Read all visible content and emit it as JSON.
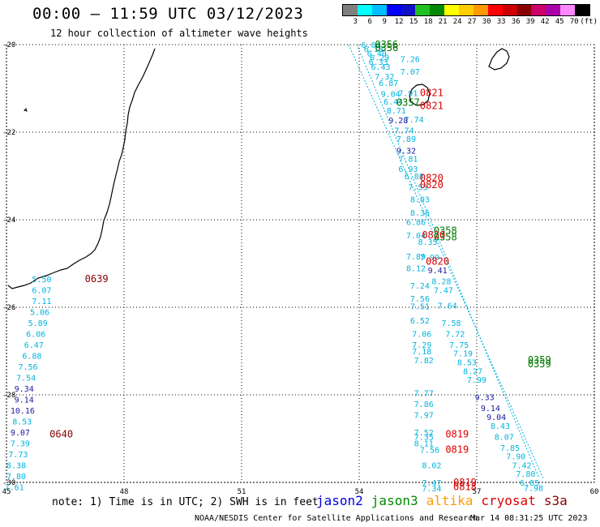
{
  "title": "00:00 — 11:59 UTC 03/12/2023",
  "subtitle": "12 hour collection of altimeter wave heights",
  "legend": {
    "colors": [
      "#7f7f7f",
      "#00ffff",
      "#00bfff",
      "#0000ff",
      "#1010c8",
      "#20c020",
      "#008800",
      "#ffff00",
      "#ffcc00",
      "#ff9900",
      "#ff0000",
      "#cc0000",
      "#880000",
      "#cc0066",
      "#aa00aa",
      "#ff88ff",
      "#000000"
    ],
    "labels": [
      "3",
      "6",
      "9",
      "12",
      "15",
      "18",
      "21",
      "24",
      "27",
      "30",
      "33",
      "36",
      "39",
      "42",
      "45",
      "70",
      "(ft)"
    ]
  },
  "axes": {
    "lon": [
      45,
      48,
      51,
      54,
      57,
      60
    ],
    "lat": [
      -20,
      -22,
      -24,
      -26,
      -28,
      -30
    ],
    "lon_labels": [
      "45",
      "48",
      "51",
      "54",
      "57",
      "60"
    ],
    "lat_labels": [
      "-20",
      "-22",
      "-24",
      "-26",
      "-28",
      "-30"
    ]
  },
  "colors": {
    "cyan": "#00b4e0",
    "dblue": "#1a1aa0",
    "red": "#dd0000",
    "dred": "#880000",
    "green": "#007700"
  },
  "labels": [
    {
      "t": "6.04",
      "lon": 54.05,
      "lat": -20.0,
      "c": "cyan"
    },
    {
      "t": "6.18",
      "lon": 54.12,
      "lat": -20.09,
      "c": "cyan"
    },
    {
      "t": "6.40",
      "lon": 54.2,
      "lat": -20.19,
      "c": "cyan"
    },
    {
      "t": "6.29",
      "lon": 54.27,
      "lat": -20.29,
      "c": "cyan"
    },
    {
      "t": "6.33",
      "lon": 54.24,
      "lat": -20.39,
      "c": "cyan"
    },
    {
      "t": "6.43",
      "lon": 54.3,
      "lat": -20.5,
      "c": "cyan"
    },
    {
      "t": "7.32",
      "lon": 54.4,
      "lat": -20.72,
      "c": "cyan"
    },
    {
      "t": "6.87",
      "lon": 54.5,
      "lat": -20.87,
      "c": "cyan"
    },
    {
      "t": "7.26",
      "lon": 55.05,
      "lat": -20.32,
      "c": "cyan"
    },
    {
      "t": "7.07",
      "lon": 55.05,
      "lat": -20.61,
      "c": "cyan"
    },
    {
      "t": "9.04",
      "lon": 54.55,
      "lat": -21.12,
      "c": "cyan"
    },
    {
      "t": "7.91",
      "lon": 55.0,
      "lat": -21.1,
      "c": "cyan"
    },
    {
      "t": "6.44",
      "lon": 54.62,
      "lat": -21.3,
      "c": "cyan"
    },
    {
      "t": "8.71",
      "lon": 54.7,
      "lat": -21.5,
      "c": "cyan"
    },
    {
      "t": "7.74",
      "lon": 55.15,
      "lat": -21.7,
      "c": "cyan"
    },
    {
      "t": "9.28",
      "lon": 54.75,
      "lat": -21.72,
      "c": "dblue"
    },
    {
      "t": "7.74",
      "lon": 54.9,
      "lat": -21.95,
      "c": "cyan"
    },
    {
      "t": "7.89",
      "lon": 54.95,
      "lat": -22.15,
      "c": "cyan"
    },
    {
      "t": "9.32",
      "lon": 54.95,
      "lat": -22.42,
      "c": "dblue"
    },
    {
      "t": "7.81",
      "lon": 55.0,
      "lat": -22.6,
      "c": "cyan"
    },
    {
      "t": "6.93",
      "lon": 55.0,
      "lat": -22.83,
      "c": "cyan"
    },
    {
      "t": "6.88",
      "lon": 55.15,
      "lat": -23.0,
      "c": "cyan"
    },
    {
      "t": "7.55",
      "lon": 55.25,
      "lat": -23.25,
      "c": "cyan"
    },
    {
      "t": "8.03",
      "lon": 55.3,
      "lat": -23.53,
      "c": "cyan"
    },
    {
      "t": "8.36",
      "lon": 55.3,
      "lat": -23.83,
      "c": "cyan"
    },
    {
      "t": "6.86",
      "lon": 55.2,
      "lat": -24.05,
      "c": "cyan"
    },
    {
      "t": "7.04",
      "lon": 55.2,
      "lat": -24.35,
      "c": "cyan"
    },
    {
      "t": "8.35",
      "lon": 55.5,
      "lat": -24.5,
      "c": "cyan"
    },
    {
      "t": "7.89",
      "lon": 55.2,
      "lat": -24.83,
      "c": "cyan"
    },
    {
      "t": "7.99",
      "lon": 55.55,
      "lat": -24.85,
      "c": "cyan"
    },
    {
      "t": "8.12",
      "lon": 55.2,
      "lat": -25.1,
      "c": "cyan"
    },
    {
      "t": "9.41",
      "lon": 55.75,
      "lat": -25.15,
      "c": "dblue"
    },
    {
      "t": "8.28",
      "lon": 55.85,
      "lat": -25.4,
      "c": "cyan"
    },
    {
      "t": "7.24",
      "lon": 55.3,
      "lat": -25.5,
      "c": "cyan"
    },
    {
      "t": "7.47",
      "lon": 55.9,
      "lat": -25.6,
      "c": "cyan"
    },
    {
      "t": "7.56",
      "lon": 55.3,
      "lat": -25.8,
      "c": "cyan"
    },
    {
      "t": "7.51",
      "lon": 55.3,
      "lat": -25.97,
      "c": "cyan"
    },
    {
      "t": "7.64",
      "lon": 56.0,
      "lat": -25.95,
      "c": "cyan"
    },
    {
      "t": "6.52",
      "lon": 55.3,
      "lat": -26.3,
      "c": "cyan"
    },
    {
      "t": "7.58",
      "lon": 56.1,
      "lat": -26.35,
      "c": "cyan"
    },
    {
      "t": "7.06",
      "lon": 55.35,
      "lat": -26.6,
      "c": "cyan"
    },
    {
      "t": "7.72",
      "lon": 56.2,
      "lat": -26.6,
      "c": "cyan"
    },
    {
      "t": "7.29",
      "lon": 55.35,
      "lat": -26.85,
      "c": "cyan"
    },
    {
      "t": "7.75",
      "lon": 56.3,
      "lat": -26.85,
      "c": "cyan"
    },
    {
      "t": "7.18",
      "lon": 55.35,
      "lat": -27.0,
      "c": "cyan"
    },
    {
      "t": "7.19",
      "lon": 56.4,
      "lat": -27.05,
      "c": "cyan"
    },
    {
      "t": "7.82",
      "lon": 55.4,
      "lat": -27.2,
      "c": "cyan"
    },
    {
      "t": "8.53",
      "lon": 56.5,
      "lat": -27.25,
      "c": "cyan"
    },
    {
      "t": "8.27",
      "lon": 56.65,
      "lat": -27.45,
      "c": "cyan"
    },
    {
      "t": "7.99",
      "lon": 56.75,
      "lat": -27.65,
      "c": "cyan"
    },
    {
      "t": "7.77",
      "lon": 55.4,
      "lat": -27.95,
      "c": "cyan"
    },
    {
      "t": "9.33",
      "lon": 56.95,
      "lat": -28.05,
      "c": "dblue"
    },
    {
      "t": "7.86",
      "lon": 55.4,
      "lat": -28.2,
      "c": "cyan"
    },
    {
      "t": "9.14",
      "lon": 57.1,
      "lat": -28.3,
      "c": "dblue"
    },
    {
      "t": "7.97",
      "lon": 55.4,
      "lat": -28.45,
      "c": "cyan"
    },
    {
      "t": "9.04",
      "lon": 57.25,
      "lat": -28.5,
      "c": "dblue"
    },
    {
      "t": "8.43",
      "lon": 57.35,
      "lat": -28.7,
      "c": "cyan"
    },
    {
      "t": "7.52",
      "lon": 55.4,
      "lat": -28.85,
      "c": "cyan"
    },
    {
      "t": "7.35",
      "lon": 55.4,
      "lat": -28.95,
      "c": "cyan"
    },
    {
      "t": "8.07",
      "lon": 57.45,
      "lat": -28.95,
      "c": "cyan"
    },
    {
      "t": "8.11",
      "lon": 55.4,
      "lat": -29.1,
      "c": "cyan"
    },
    {
      "t": "7.56",
      "lon": 55.55,
      "lat": -29.25,
      "c": "cyan"
    },
    {
      "t": "7.85",
      "lon": 57.6,
      "lat": -29.2,
      "c": "cyan"
    },
    {
      "t": "7.90",
      "lon": 57.75,
      "lat": -29.4,
      "c": "cyan"
    },
    {
      "t": "8.02",
      "lon": 55.6,
      "lat": -29.6,
      "c": "cyan"
    },
    {
      "t": "7.42",
      "lon": 57.9,
      "lat": -29.6,
      "c": "cyan"
    },
    {
      "t": "7.80",
      "lon": 58.0,
      "lat": -29.8,
      "c": "cyan"
    },
    {
      "t": "6.85",
      "lon": 58.1,
      "lat": -30.0,
      "c": "cyan"
    },
    {
      "t": "7.47",
      "lon": 55.6,
      "lat": -30.0,
      "c": "cyan"
    },
    {
      "t": "7.34",
      "lon": 55.6,
      "lat": -30.13,
      "c": "cyan"
    },
    {
      "t": "7.98",
      "lon": 58.2,
      "lat": -30.12,
      "c": "cyan"
    },
    {
      "t": "5.50",
      "lon": 45.65,
      "lat": -25.35,
      "c": "cyan"
    },
    {
      "t": "6.07",
      "lon": 45.65,
      "lat": -25.6,
      "c": "cyan"
    },
    {
      "t": "7.11",
      "lon": 45.65,
      "lat": -25.85,
      "c": "cyan"
    },
    {
      "t": "5.06",
      "lon": 45.6,
      "lat": -26.1,
      "c": "cyan"
    },
    {
      "t": "5.89",
      "lon": 45.55,
      "lat": -26.35,
      "c": "cyan"
    },
    {
      "t": "6.06",
      "lon": 45.5,
      "lat": -26.6,
      "c": "cyan"
    },
    {
      "t": "6.47",
      "lon": 45.45,
      "lat": -26.85,
      "c": "cyan"
    },
    {
      "t": "6.88",
      "lon": 45.4,
      "lat": -27.1,
      "c": "cyan"
    },
    {
      "t": "7.56",
      "lon": 45.3,
      "lat": -27.35,
      "c": "cyan"
    },
    {
      "t": "7.54",
      "lon": 45.25,
      "lat": -27.6,
      "c": "cyan"
    },
    {
      "t": "9.34",
      "lon": 45.2,
      "lat": -27.85,
      "c": "dblue"
    },
    {
      "t": "9.14",
      "lon": 45.2,
      "lat": -28.1,
      "c": "dblue"
    },
    {
      "t": "10.16",
      "lon": 45.1,
      "lat": -28.35,
      "c": "dblue"
    },
    {
      "t": "8.53",
      "lon": 45.15,
      "lat": -28.6,
      "c": "cyan"
    },
    {
      "t": "9.07",
      "lon": 45.1,
      "lat": -28.85,
      "c": "dblue"
    },
    {
      "t": "7.39",
      "lon": 45.1,
      "lat": -29.1,
      "c": "cyan"
    },
    {
      "t": "7.73",
      "lon": 45.05,
      "lat": -29.35,
      "c": "cyan"
    },
    {
      "t": "8.38",
      "lon": 45.0,
      "lat": -29.6,
      "c": "cyan"
    },
    {
      "t": "7.80",
      "lon": 45.0,
      "lat": -29.85,
      "c": "cyan"
    },
    {
      "t": "7.61",
      "lon": 44.95,
      "lat": -30.1,
      "c": "cyan"
    },
    {
      "t": "0639",
      "lon": 47.0,
      "lat": -25.35,
      "c": "dred",
      "big": true
    },
    {
      "t": "0640",
      "lon": 46.1,
      "lat": -28.9,
      "c": "dred",
      "big": true
    },
    {
      "t": "0356",
      "lon": 54.4,
      "lat": -20.0,
      "c": "green",
      "big": true
    },
    {
      "t": "0356",
      "lon": 54.4,
      "lat": -20.07,
      "c": "green",
      "big": true
    },
    {
      "t": "0357",
      "lon": 54.95,
      "lat": -21.32,
      "c": "green",
      "big": true
    },
    {
      "t": "0821",
      "lon": 55.55,
      "lat": -21.1,
      "c": "red",
      "big": true
    },
    {
      "t": "0821",
      "lon": 55.55,
      "lat": -21.4,
      "c": "red",
      "big": true
    },
    {
      "t": "0820",
      "lon": 55.55,
      "lat": -23.05,
      "c": "red",
      "big": true
    },
    {
      "t": "0820",
      "lon": 55.55,
      "lat": -23.2,
      "c": "red",
      "big": true
    },
    {
      "t": "0358",
      "lon": 55.9,
      "lat": -24.25,
      "c": "green",
      "big": true
    },
    {
      "t": "0358",
      "lon": 55.9,
      "lat": -24.4,
      "c": "green",
      "big": true
    },
    {
      "t": "0820",
      "lon": 55.6,
      "lat": -24.35,
      "c": "red",
      "big": true
    },
    {
      "t": "0820",
      "lon": 55.7,
      "lat": -24.95,
      "c": "red",
      "big": true
    },
    {
      "t": "0359",
      "lon": 58.3,
      "lat": -27.2,
      "c": "green",
      "big": true
    },
    {
      "t": "0359",
      "lon": 58.3,
      "lat": -27.3,
      "c": "green",
      "big": true
    },
    {
      "t": "0819",
      "lon": 56.2,
      "lat": -28.9,
      "c": "red",
      "big": true
    },
    {
      "t": "0819",
      "lon": 56.2,
      "lat": -29.25,
      "c": "red",
      "big": true
    },
    {
      "t": "0819",
      "lon": 56.4,
      "lat": -30.0,
      "c": "red",
      "big": true
    },
    {
      "t": "0818",
      "lon": 56.4,
      "lat": -30.1,
      "c": "red",
      "big": true
    }
  ],
  "note": "note: 1) Time is in UTC; 2) SWH is in feet",
  "satellites": [
    {
      "name": "jason2",
      "color": "#0000dd"
    },
    {
      "name": "jason3",
      "color": "#008800"
    },
    {
      "name": "altika",
      "color": "#ff9900"
    },
    {
      "name": "cryosat",
      "color": "#dd0000"
    },
    {
      "name": "s3a",
      "color": "#880000"
    }
  ],
  "credit": "NOAA/NESDIS Center for Satellite Applications and Research",
  "stamp": "Mar 14 08:31:25 UTC 2023"
}
